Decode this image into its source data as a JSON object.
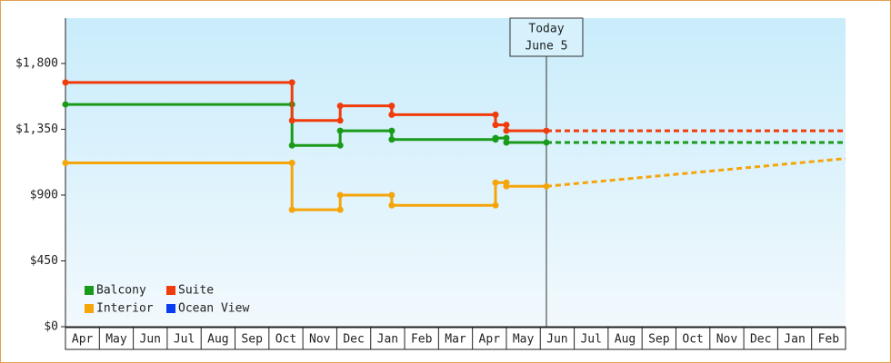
{
  "chart_data": {
    "type": "step-line",
    "months": [
      "Apr",
      "May",
      "Jun",
      "Jul",
      "Aug",
      "Sep",
      "Oct",
      "Nov",
      "Dec",
      "Jan",
      "Feb",
      "Mar",
      "Apr",
      "May",
      "Jun",
      "Jul",
      "Aug",
      "Sep",
      "Oct",
      "Nov",
      "Dec",
      "Jan",
      "Feb"
    ],
    "xlim": [
      0,
      23
    ],
    "ylim": [
      0,
      2110
    ],
    "yticks": [
      {
        "value": 0,
        "label": "$0"
      },
      {
        "value": 450,
        "label": "$450"
      },
      {
        "value": 900,
        "label": "$900"
      },
      {
        "value": 1350,
        "label": "$1,350"
      },
      {
        "value": 1800,
        "label": "$1,800"
      }
    ],
    "today": {
      "x": 14.18,
      "label": [
        "Today",
        "June 5"
      ]
    },
    "series": [
      {
        "name": "Balcony",
        "color": "#1a9a1a",
        "x": [
          0,
          6.68,
          6.68,
          8.1,
          8.1,
          9.62,
          9.62,
          12.68,
          12.68,
          13.0,
          13.0,
          14.18
        ],
        "values": [
          1520,
          1520,
          1240,
          1240,
          1340,
          1340,
          1280,
          1280,
          1290,
          1290,
          1260,
          1260
        ],
        "forecast": {
          "x": [
            14.18,
            23
          ],
          "values": [
            1260,
            1260
          ]
        }
      },
      {
        "name": "Suite",
        "color": "#f03c0a",
        "x": [
          0,
          6.68,
          6.68,
          8.1,
          8.1,
          9.62,
          9.62,
          12.68,
          12.68,
          13.0,
          13.0,
          14.18
        ],
        "values": [
          1670,
          1670,
          1410,
          1410,
          1510,
          1510,
          1450,
          1450,
          1380,
          1380,
          1340,
          1340
        ],
        "forecast": {
          "x": [
            14.18,
            23
          ],
          "values": [
            1340,
            1340
          ]
        }
      },
      {
        "name": "Interior",
        "color": "#f5a50a",
        "x": [
          0,
          6.68,
          6.68,
          8.1,
          8.1,
          9.62,
          9.62,
          12.68,
          12.68,
          13.0,
          13.0,
          14.18
        ],
        "values": [
          1120,
          1120,
          800,
          800,
          900,
          900,
          830,
          830,
          985,
          985,
          960,
          960
        ],
        "forecast": {
          "x": [
            14.18,
            23
          ],
          "values": [
            960,
            1150
          ]
        }
      },
      {
        "name": "Ocean View",
        "color": "#0a3cf0",
        "x": [],
        "values": []
      }
    ]
  }
}
